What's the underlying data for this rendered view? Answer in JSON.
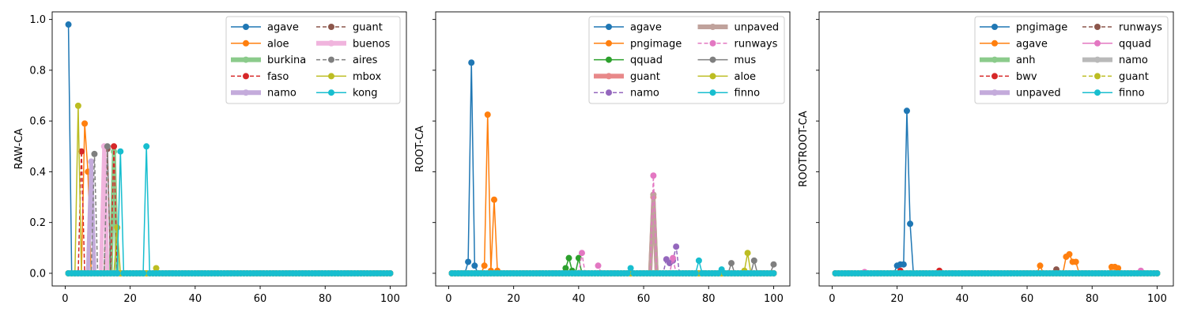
{
  "chart_data": [
    {
      "type": "line",
      "title": "",
      "xlabel": "",
      "ylabel": "RAW-CA",
      "xlim": [
        -4,
        105
      ],
      "ylim": [
        -0.05,
        1.03
      ],
      "xticks": [
        0,
        20,
        40,
        60,
        80,
        100
      ],
      "yticks": [
        0.0,
        0.2,
        0.4,
        0.6,
        0.8,
        1.0
      ],
      "ytick_labels": [
        "0.0",
        "0.2",
        "0.4",
        "0.6",
        "0.8",
        "1.0"
      ],
      "grid": false,
      "legend_position": "top-right",
      "legend_columns": 2,
      "series": [
        {
          "name": "agave",
          "color": "#1f77b4",
          "style": "solid",
          "points": [
            [
              1,
              0.98
            ],
            [
              2,
              0.0
            ]
          ]
        },
        {
          "name": "aloe",
          "color": "#ff7f0e",
          "style": "solid",
          "points": [
            [
              5,
              0.0
            ],
            [
              6,
              0.59
            ],
            [
              7,
              0.4
            ],
            [
              8,
              0.0
            ]
          ]
        },
        {
          "name": "burkina",
          "color": "#2ca02c",
          "style": "thick",
          "points": [
            [
              14,
              0.0
            ],
            [
              15,
              0.48
            ],
            [
              16,
              0.0
            ]
          ]
        },
        {
          "name": "faso",
          "color": "#d62728",
          "style": "dashed",
          "points": [
            [
              4,
              0.0
            ],
            [
              5,
              0.48
            ],
            [
              6,
              0.0
            ],
            [
              14,
              0.0
            ],
            [
              15,
              0.5
            ],
            [
              16,
              0.0
            ]
          ]
        },
        {
          "name": "namo",
          "color": "#9467bd",
          "style": "thick",
          "points": [
            [
              7,
              0.0
            ],
            [
              8,
              0.44
            ],
            [
              9,
              0.0
            ]
          ]
        },
        {
          "name": "guant",
          "color": "#8c564b",
          "style": "dashed",
          "points": [
            [
              12,
              0.0
            ],
            [
              13,
              0.49
            ],
            [
              14,
              0.0
            ]
          ]
        },
        {
          "name": "buenos",
          "color": "#e377c2",
          "style": "thick",
          "points": [
            [
              11,
              0.0
            ],
            [
              12,
              0.5
            ],
            [
              13,
              0.0
            ]
          ]
        },
        {
          "name": "aires",
          "color": "#7f7f7f",
          "style": "dashed",
          "points": [
            [
              8,
              0.0
            ],
            [
              9,
              0.47
            ],
            [
              10,
              0.0
            ],
            [
              12,
              0.0
            ],
            [
              13,
              0.5
            ],
            [
              14,
              0.0
            ]
          ]
        },
        {
          "name": "mbox",
          "color": "#bcbd22",
          "style": "solid",
          "points": [
            [
              3,
              0.0
            ],
            [
              4,
              0.66
            ],
            [
              5,
              0.0
            ],
            [
              15,
              0.0
            ],
            [
              16,
              0.18
            ],
            [
              17,
              0.0
            ],
            [
              27,
              0.0
            ],
            [
              28,
              0.02
            ],
            [
              29,
              0.0
            ]
          ]
        },
        {
          "name": "kong",
          "color": "#17becf",
          "style": "solid",
          "points": [
            [
              16,
              0.0
            ],
            [
              17,
              0.48
            ],
            [
              18,
              0.0
            ],
            [
              24,
              0.0
            ],
            [
              25,
              0.5
            ],
            [
              26,
              0.0
            ]
          ]
        }
      ]
    },
    {
      "type": "line",
      "title": "",
      "xlabel": "",
      "ylabel": "ROOT-CA",
      "xlim": [
        -4,
        105
      ],
      "ylim": [
        -0.05,
        1.03
      ],
      "xticks": [
        0,
        20,
        40,
        60,
        80,
        100
      ],
      "yticks": [
        0.0,
        0.2,
        0.4,
        0.6,
        0.8,
        1.0
      ],
      "ytick_labels": [
        "",
        "",
        "",
        "",
        "",
        ""
      ],
      "grid": false,
      "legend_position": "top-right",
      "legend_columns": 2,
      "series": [
        {
          "name": "agave",
          "color": "#1f77b4",
          "style": "solid",
          "points": [
            [
              5,
              0.0
            ],
            [
              6,
              0.045
            ],
            [
              7,
              0.83
            ],
            [
              8,
              0.03
            ],
            [
              9,
              0.0
            ]
          ]
        },
        {
          "name": "pngimage",
          "color": "#ff7f0e",
          "style": "solid",
          "points": [
            [
              10,
              0.0
            ],
            [
              11,
              0.03
            ],
            [
              12,
              0.625
            ],
            [
              13,
              0.01
            ],
            [
              14,
              0.29
            ],
            [
              15,
              0.01
            ],
            [
              16,
              0.0
            ]
          ]
        },
        {
          "name": "qquad",
          "color": "#2ca02c",
          "style": "solid",
          "points": [
            [
              35,
              0.0
            ],
            [
              36,
              0.02
            ],
            [
              37,
              0.06
            ],
            [
              38,
              0.01
            ],
            [
              39,
              0.0
            ],
            [
              40,
              0.06
            ],
            [
              41,
              0.0
            ]
          ]
        },
        {
          "name": "guant",
          "color": "#d62728",
          "style": "thick",
          "points": [
            [
              62,
              0.0
            ],
            [
              63,
              0.3
            ],
            [
              64,
              0.0
            ]
          ]
        },
        {
          "name": "namo",
          "color": "#9467bd",
          "style": "dashed",
          "points": [
            [
              66,
              0.0
            ],
            [
              67,
              0.055
            ],
            [
              68,
              0.04
            ],
            [
              69,
              0.05
            ],
            [
              70,
              0.105
            ],
            [
              71,
              0.0
            ]
          ]
        },
        {
          "name": "unpaved",
          "color": "#8c564b",
          "style": "thick",
          "points": [
            [
              62,
              0.0
            ],
            [
              63,
              0.31
            ],
            [
              64,
              0.0
            ]
          ]
        },
        {
          "name": "runways",
          "color": "#e377c2",
          "style": "dashed",
          "points": [
            [
              40,
              0.0
            ],
            [
              41,
              0.08
            ],
            [
              42,
              0.0
            ],
            [
              46,
              0.03
            ],
            [
              47,
              0.0
            ],
            [
              62,
              0.0
            ],
            [
              63,
              0.385
            ],
            [
              64,
              0.0
            ],
            [
              68,
              0.0
            ],
            [
              69,
              0.06
            ],
            [
              70,
              0.0
            ]
          ]
        },
        {
          "name": "mus",
          "color": "#7f7f7f",
          "style": "solid",
          "points": [
            [
              86,
              0.0
            ],
            [
              87,
              0.04
            ],
            [
              88,
              0.0
            ],
            [
              93,
              0.0
            ],
            [
              94,
              0.05
            ],
            [
              95,
              0.0
            ],
            [
              99,
              0.0
            ],
            [
              100,
              0.035
            ]
          ]
        },
        {
          "name": "aloe",
          "color": "#bcbd22",
          "style": "solid",
          "points": [
            [
              90,
              0.0
            ],
            [
              91,
              0.01
            ],
            [
              92,
              0.08
            ],
            [
              93,
              0.0
            ]
          ]
        },
        {
          "name": "finno",
          "color": "#17becf",
          "style": "solid",
          "points": [
            [
              55,
              0.0
            ],
            [
              56,
              0.02
            ],
            [
              57,
              0.0
            ],
            [
              76,
              0.0
            ],
            [
              77,
              0.05
            ],
            [
              78,
              0.0
            ],
            [
              84,
              0.015
            ],
            [
              85,
              0.0
            ]
          ]
        }
      ]
    },
    {
      "type": "line",
      "title": "",
      "xlabel": "",
      "ylabel": "ROOTROOT-CA",
      "xlim": [
        -4,
        105
      ],
      "ylim": [
        -0.05,
        1.03
      ],
      "xticks": [
        0,
        20,
        40,
        60,
        80,
        100
      ],
      "yticks": [
        0.0,
        0.2,
        0.4,
        0.6,
        0.8,
        1.0
      ],
      "ytick_labels": [
        "",
        "",
        "",
        "",
        "",
        ""
      ],
      "grid": false,
      "legend_position": "top-right",
      "legend_columns": 2,
      "series": [
        {
          "name": "pngimage",
          "color": "#1f77b4",
          "style": "solid",
          "points": [
            [
              19,
              0.0
            ],
            [
              20,
              0.03
            ],
            [
              21,
              0.035
            ],
            [
              22,
              0.035
            ],
            [
              23,
              0.64
            ],
            [
              24,
              0.195
            ],
            [
              25,
              0.0
            ]
          ]
        },
        {
          "name": "agave",
          "color": "#ff7f0e",
          "style": "solid",
          "points": [
            [
              63,
              0.0
            ],
            [
              64,
              0.03
            ],
            [
              65,
              0.0
            ],
            [
              71,
              0.0
            ],
            [
              72,
              0.065
            ],
            [
              73,
              0.075
            ],
            [
              74,
              0.045
            ],
            [
              75,
              0.045
            ],
            [
              76,
              0.0
            ],
            [
              85,
              0.0
            ],
            [
              86,
              0.025
            ],
            [
              87,
              0.025
            ],
            [
              88,
              0.02
            ],
            [
              89,
              0.0
            ]
          ]
        },
        {
          "name": "anh",
          "color": "#2ca02c",
          "style": "thick",
          "points": [
            [
              1,
              0.0
            ],
            [
              100,
              0.0
            ]
          ]
        },
        {
          "name": "bwv",
          "color": "#d62728",
          "style": "dashed",
          "points": [
            [
              20,
              0.0
            ],
            [
              21,
              0.01
            ],
            [
              22,
              0.0
            ],
            [
              33,
              0.01
            ],
            [
              34,
              0.0
            ]
          ]
        },
        {
          "name": "unpaved",
          "color": "#9467bd",
          "style": "thick",
          "points": [
            [
              1,
              0.0
            ],
            [
              100,
              0.0
            ]
          ]
        },
        {
          "name": "runways",
          "color": "#8c564b",
          "style": "dashed",
          "points": [
            [
              68,
              0.0
            ],
            [
              69,
              0.015
            ],
            [
              70,
              0.0
            ]
          ]
        },
        {
          "name": "qquad",
          "color": "#e377c2",
          "style": "solid",
          "points": [
            [
              9,
              0.0
            ],
            [
              10,
              0.005
            ],
            [
              11,
              0.0
            ],
            [
              94,
              0.0
            ],
            [
              95,
              0.01
            ],
            [
              96,
              0.0
            ]
          ]
        },
        {
          "name": "namo",
          "color": "#7f7f7f",
          "style": "thick",
          "points": [
            [
              1,
              0.0
            ],
            [
              100,
              0.0
            ]
          ]
        },
        {
          "name": "guant",
          "color": "#bcbd22",
          "style": "dashed",
          "points": [
            [
              1,
              0.0
            ],
            [
              100,
              0.0
            ]
          ]
        },
        {
          "name": "finno",
          "color": "#17becf",
          "style": "solid",
          "points": [
            [
              1,
              0.0
            ],
            [
              100,
              0.0
            ]
          ]
        }
      ]
    }
  ]
}
